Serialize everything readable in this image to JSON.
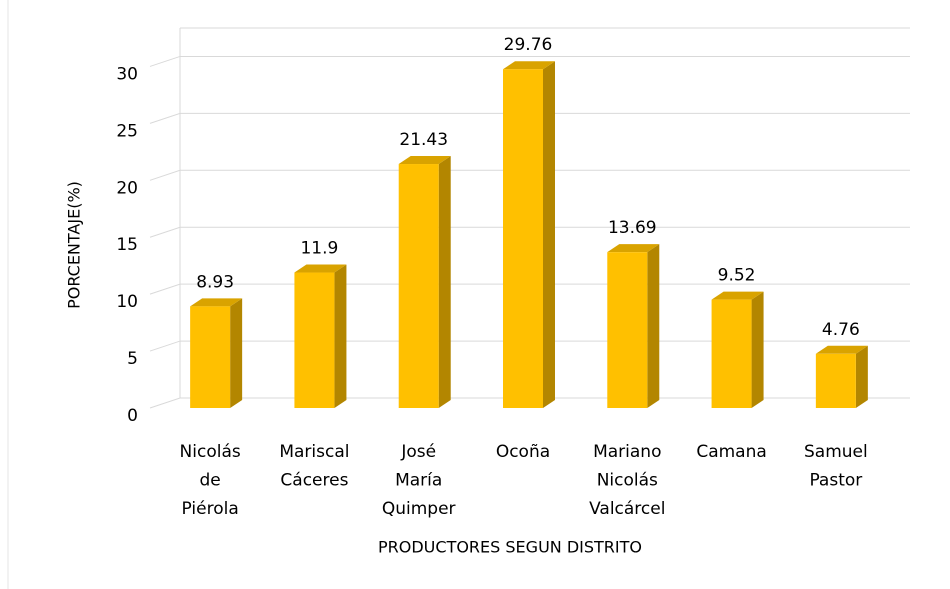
{
  "chart_data": {
    "type": "bar3d",
    "x_label": "PRODUCTORES SEGUN DISTRITO",
    "y_label": "PORCENTAJE(%)",
    "categories": [
      "Nicolás de Piérola",
      "Mariscal Cáceres",
      "José María Quimper",
      "Ocoña",
      "Mariano Nicolás Valcárcel",
      "Camana",
      "Samuel Pastor"
    ],
    "values": [
      8.93,
      11.9,
      21.43,
      29.76,
      13.69,
      9.52,
      4.76
    ],
    "color": "#ffc000",
    "ylim": [
      0,
      32.5
    ],
    "yticks": [
      0,
      5,
      10,
      15,
      20,
      25,
      30
    ],
    "grid": true
  }
}
